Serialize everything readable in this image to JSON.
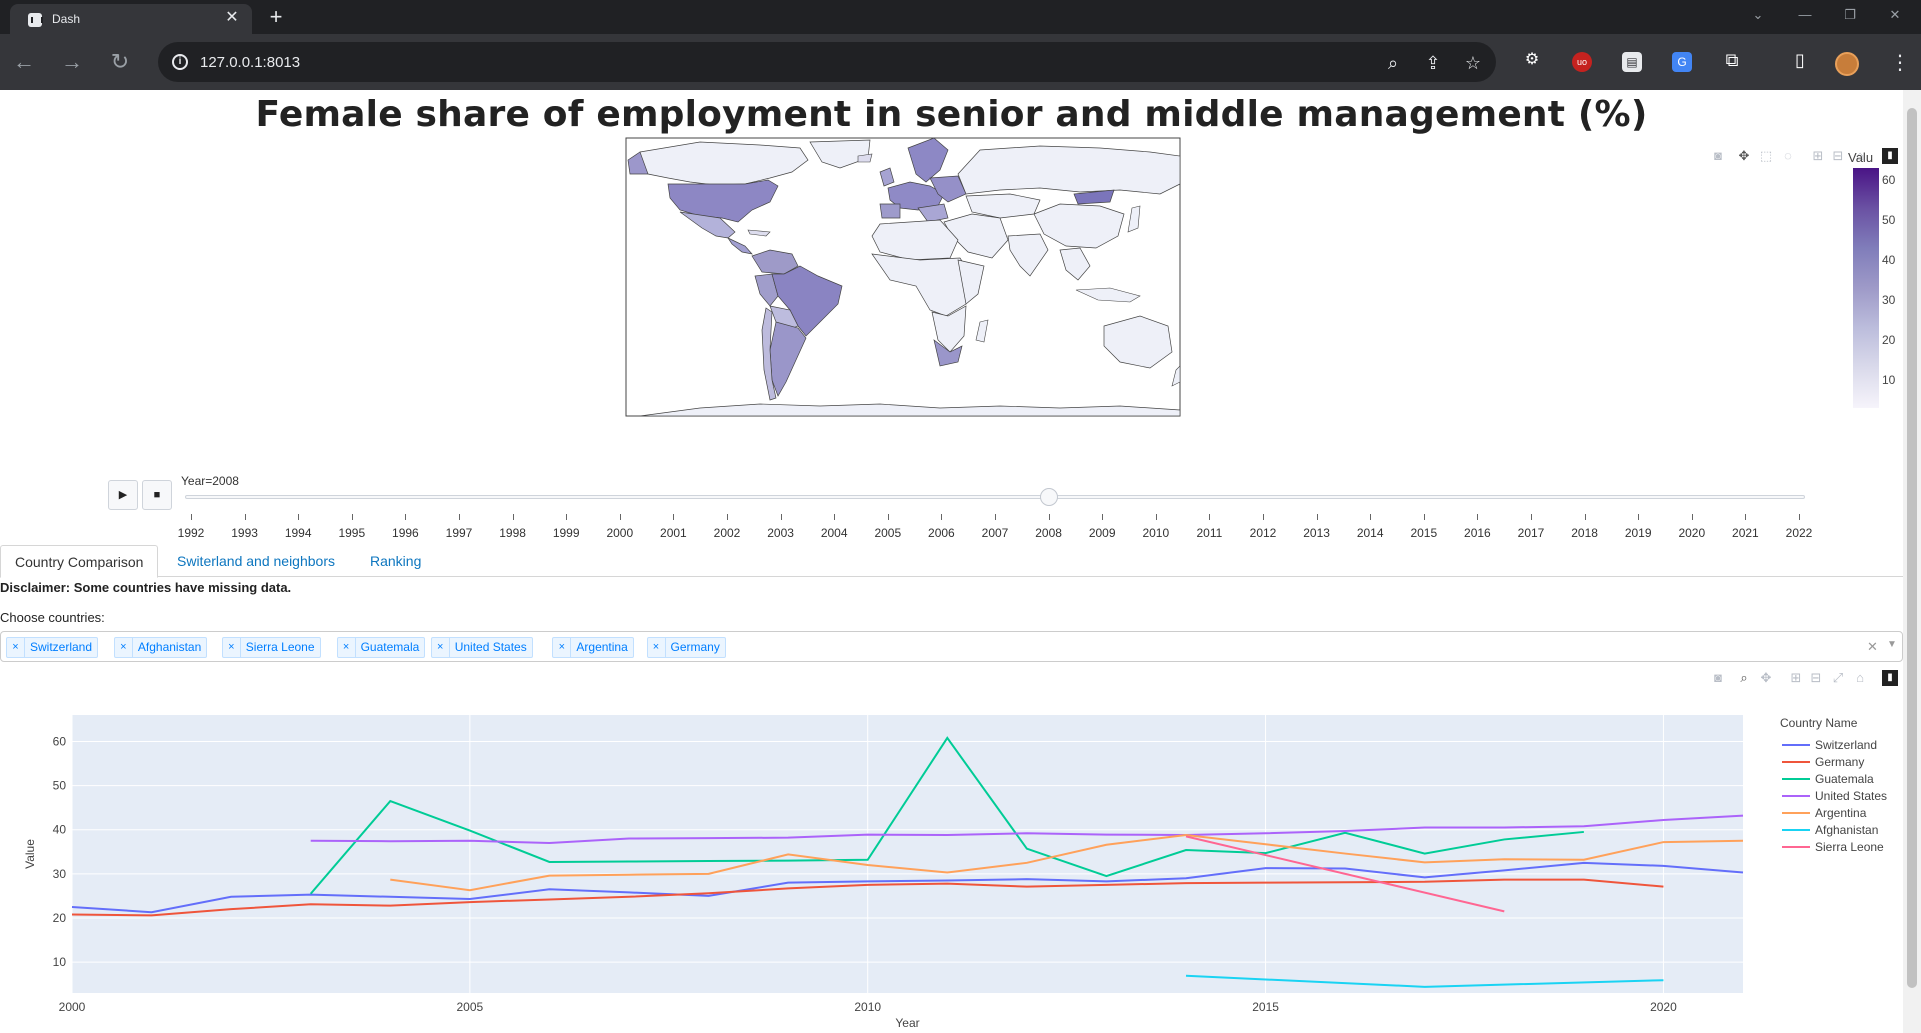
{
  "browser": {
    "tab_title": "Dash",
    "url": "127.0.0.1:8013"
  },
  "page": {
    "title": "Female share of employment in senior and middle management (%)"
  },
  "map": {
    "colorbar_title": "Valu",
    "colorbar_ticks": [
      "60",
      "50",
      "40",
      "30",
      "20",
      "10"
    ],
    "colorscale": [
      "#f6f4fb",
      "#dadaeb",
      "#bcbddc",
      "#9e9ac8",
      "#807dba",
      "#6a51a3",
      "#4a1486"
    ]
  },
  "slider": {
    "current_label": "Year=2008",
    "years": [
      "1992",
      "1993",
      "1994",
      "1995",
      "1996",
      "1997",
      "1998",
      "1999",
      "2000",
      "2001",
      "2002",
      "2003",
      "2004",
      "2005",
      "2006",
      "2007",
      "2008",
      "2009",
      "2010",
      "2011",
      "2012",
      "2013",
      "2014",
      "2015",
      "2016",
      "2017",
      "2018",
      "2019",
      "2020",
      "2021",
      "2022"
    ],
    "selected_year": "2008",
    "play_label": "▶",
    "stop_label": "■"
  },
  "tabs": [
    {
      "label": "Country Comparison"
    },
    {
      "label": "Switerland and neighbors"
    },
    {
      "label": "Ranking"
    }
  ],
  "disclaimer": "Disclaimer: Some countries have missing data.",
  "choose_label": "Choose countries:",
  "selected_countries": [
    "Switzerland",
    "Afghanistan",
    "Sierra Leone",
    "Guatemala",
    "United States",
    "Argentina",
    "Germany"
  ],
  "chart_data": {
    "type": "line",
    "title": "",
    "xlabel": "Year",
    "ylabel": "Value",
    "xlim": [
      2000,
      2021
    ],
    "ylim": [
      3,
      66
    ],
    "x_ticks": [
      2000,
      2005,
      2010,
      2015,
      2020
    ],
    "y_ticks": [
      10,
      20,
      30,
      40,
      50,
      60
    ],
    "grid": true,
    "legend_title": "Country Name",
    "legend_position": "right",
    "series": [
      {
        "name": "Switzerland",
        "color": "#636efa",
        "x": [
          2000,
          2001,
          2002,
          2003,
          2004,
          2005,
          2006,
          2007,
          2008,
          2009,
          2010,
          2011,
          2012,
          2013,
          2014,
          2015,
          2016,
          2017,
          2018,
          2019,
          2020,
          2021
        ],
        "y": [
          22.5,
          21.3,
          24.8,
          25.3,
          24.8,
          24.3,
          26.5,
          25.8,
          25.0,
          28.0,
          28.3,
          28.5,
          28.8,
          28.3,
          29.0,
          31.3,
          31.2,
          29.2,
          30.8,
          32.5,
          31.8,
          30.3
        ]
      },
      {
        "name": "Germany",
        "color": "#ef553b",
        "x": [
          2000,
          2001,
          2002,
          2003,
          2004,
          2005,
          2006,
          2007,
          2008,
          2009,
          2010,
          2011,
          2012,
          2013,
          2014,
          2015,
          2016,
          2017,
          2018,
          2019,
          2020
        ],
        "y": [
          20.8,
          20.6,
          22.0,
          23.1,
          22.8,
          23.6,
          24.2,
          24.8,
          25.6,
          26.7,
          27.5,
          27.8,
          27.1,
          27.5,
          27.9,
          28.0,
          28.1,
          28.2,
          28.7,
          28.7,
          27.1
        ]
      },
      {
        "name": "Guatemala",
        "color": "#00cc96",
        "x": [
          2003,
          2004,
          2005,
          2006,
          2007,
          2008,
          2009,
          2010,
          2011,
          2012,
          2013,
          2014,
          2015,
          2016,
          2017,
          2018,
          2019
        ],
        "y": [
          25.5,
          46.5,
          39.8,
          32.7,
          32.8,
          32.9,
          33.0,
          33.2,
          60.8,
          35.7,
          29.5,
          35.4,
          34.7,
          39.3,
          34.6,
          37.8,
          39.5
        ]
      },
      {
        "name": "United States",
        "color": "#ab63fa",
        "x": [
          2003,
          2004,
          2005,
          2006,
          2007,
          2008,
          2009,
          2010,
          2011,
          2012,
          2013,
          2014,
          2015,
          2016,
          2017,
          2018,
          2019,
          2020,
          2021
        ],
        "y": [
          37.5,
          37.4,
          37.5,
          37.0,
          38.0,
          38.1,
          38.2,
          38.9,
          38.8,
          39.2,
          38.9,
          38.8,
          39.2,
          39.7,
          40.5,
          40.5,
          40.8,
          42.2,
          43.2
        ]
      },
      {
        "name": "Argentina",
        "color": "#ffa15a",
        "x": [
          2004,
          2005,
          2006,
          2007,
          2008,
          2009,
          2010,
          2011,
          2012,
          2013,
          2014,
          2015,
          2016,
          2017,
          2018,
          2019,
          2020,
          2021
        ],
        "y": [
          28.7,
          26.3,
          29.6,
          29.8,
          30.0,
          34.4,
          32.0,
          30.3,
          32.5,
          36.6,
          38.8,
          36.7,
          34.6,
          32.6,
          33.3,
          33.2,
          37.2,
          37.5
        ]
      },
      {
        "name": "Afghanistan",
        "color": "#19d3f3",
        "x": [
          2014,
          2017,
          2020
        ],
        "y": [
          6.9,
          4.4,
          5.9
        ]
      },
      {
        "name": "Sierra Leone",
        "color": "#ff6692",
        "x": [
          2014,
          2018
        ],
        "y": [
          38.5,
          21.5
        ]
      }
    ]
  },
  "modebar_icons": [
    "camera-icon",
    "zoom-icon",
    "pan-icon",
    "zoom-in-icon",
    "zoom-out-icon",
    "autoscale-icon",
    "reset-axes-icon",
    "plotly-logo-icon"
  ]
}
